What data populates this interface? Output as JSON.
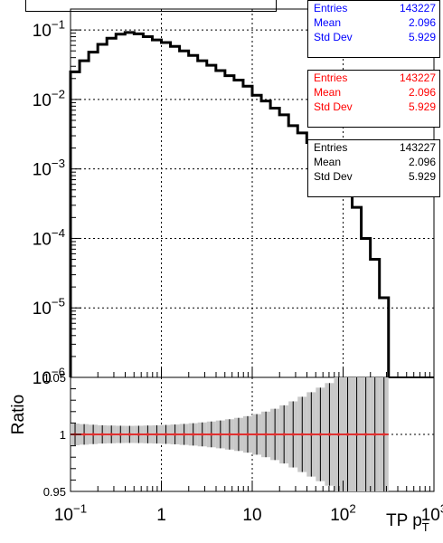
{
  "chart_data": [
    {
      "type": "histogram",
      "xscale": "log",
      "yscale": "log",
      "xlim": [
        0.1,
        1000
      ],
      "ylim": [
        1e-06,
        0.2
      ],
      "x_tick_labels": [
        "10^-1",
        "1",
        "10",
        "10^2",
        "10^3"
      ],
      "y_tick_labels": [
        "10^-6",
        "10^-5",
        "10^-4",
        "10^-3",
        "10^-2",
        "10^-1"
      ],
      "grid": true,
      "bin_edges_log10": [
        -1.0,
        -0.9,
        -0.8,
        -0.7,
        -0.6,
        -0.5,
        -0.4,
        -0.3,
        -0.2,
        -0.1,
        0.0,
        0.1,
        0.2,
        0.3,
        0.4,
        0.5,
        0.6,
        0.7,
        0.8,
        0.9,
        1.0,
        1.1,
        1.2,
        1.3,
        1.4,
        1.5,
        1.6,
        1.7,
        1.8,
        1.9,
        2.0,
        2.1,
        2.2,
        2.3,
        2.4,
        2.5
      ],
      "values": [
        0.025,
        0.036,
        0.048,
        0.062,
        0.076,
        0.087,
        0.092,
        0.088,
        0.08,
        0.072,
        0.066,
        0.058,
        0.05,
        0.043,
        0.036,
        0.031,
        0.026,
        0.022,
        0.019,
        0.0155,
        0.0115,
        0.0095,
        0.0075,
        0.006,
        0.0042,
        0.0033,
        0.0024,
        0.0016,
        0.0012,
        0.00066,
        0.00046,
        0.00028,
        0.0001,
        5e-05,
        1.4e-05
      ],
      "histograms": [
        {
          "color": "#0000ff",
          "stats": {
            "Entries": "143227",
            "Mean": "2.096",
            "Std Dev": "5.929"
          }
        },
        {
          "color": "#ff0000",
          "stats": {
            "Entries": "143227",
            "Mean": "2.096",
            "Std Dev": "5.929"
          }
        },
        {
          "color": "#000000",
          "stats": {
            "Entries": "143227",
            "Mean": "2.096",
            "Std Dev": "5.929"
          }
        }
      ]
    },
    {
      "type": "ratio",
      "ylabel": "Ratio",
      "xlabel": "TP p_T",
      "xscale": "log",
      "xlim": [
        0.1,
        1000
      ],
      "ylim": [
        0.95,
        1.05
      ],
      "y_tick_labels": [
        "0.95",
        "1",
        "1.05"
      ],
      "x_tick_labels": [
        "10^-1",
        "1",
        "10",
        "10^2",
        "10^3"
      ],
      "ratio_value": 1.0,
      "error_band_halfwidth": [
        0.0095,
        0.009,
        0.0085,
        0.008,
        0.0078,
        0.0076,
        0.0075,
        0.0076,
        0.0078,
        0.008,
        0.0083,
        0.0087,
        0.0092,
        0.0098,
        0.0105,
        0.0113,
        0.0122,
        0.0133,
        0.0145,
        0.016,
        0.0178,
        0.02,
        0.0225,
        0.0255,
        0.029,
        0.033,
        0.037,
        0.041,
        0.045,
        0.05,
        0.05,
        0.05,
        0.05,
        0.05,
        0.05
      ]
    }
  ],
  "colors": {
    "hist_line": "#000000",
    "band": "#c8c8c8",
    "ratio_marker": "#e03030"
  }
}
